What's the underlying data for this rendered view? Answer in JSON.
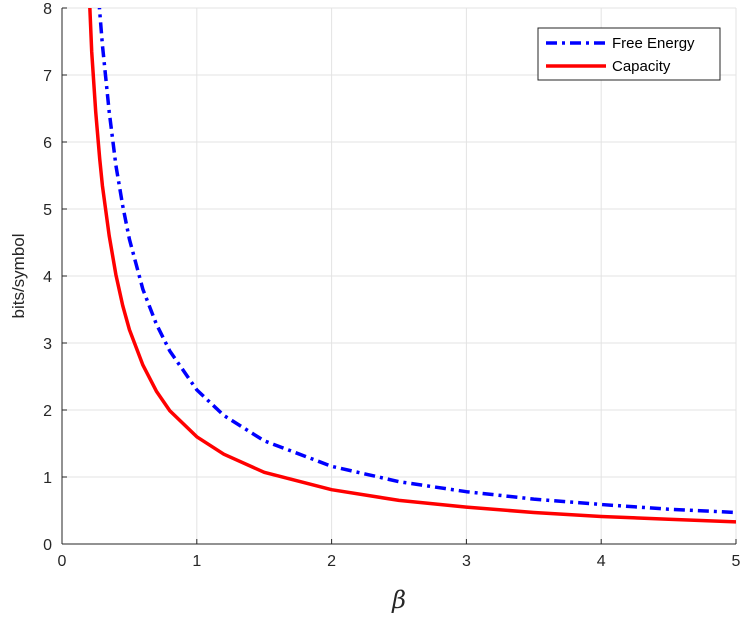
{
  "chart_data": {
    "type": "line",
    "title": "",
    "xlabel": "β",
    "ylabel": "bits/symbol",
    "xlim": [
      0,
      5
    ],
    "ylim": [
      0,
      8
    ],
    "xticks": [
      0,
      1,
      2,
      3,
      4,
      5
    ],
    "yticks": [
      0,
      1,
      2,
      3,
      4,
      5,
      6,
      7,
      8
    ],
    "grid": true,
    "legend_position": "top-right",
    "series": [
      {
        "name": "Free Energy",
        "color": "#0000ff",
        "style": "dashdot",
        "x": [
          0.26,
          0.28,
          0.3,
          0.35,
          0.4,
          0.45,
          0.5,
          0.6,
          0.7,
          0.8,
          1.0,
          1.2,
          1.5,
          2.0,
          2.5,
          3.0,
          3.5,
          4.0,
          4.5,
          5.0
        ],
        "y": [
          8.5,
          7.95,
          7.45,
          6.45,
          5.65,
          5.05,
          4.55,
          3.8,
          3.28,
          2.88,
          2.3,
          1.92,
          1.54,
          1.16,
          0.93,
          0.78,
          0.67,
          0.59,
          0.52,
          0.47
        ]
      },
      {
        "name": "Capacity",
        "color": "#ff0000",
        "style": "solid",
        "x": [
          0.2,
          0.22,
          0.25,
          0.28,
          0.3,
          0.35,
          0.4,
          0.45,
          0.5,
          0.6,
          0.7,
          0.8,
          1.0,
          1.2,
          1.5,
          2.0,
          2.5,
          3.0,
          3.5,
          4.0,
          4.5,
          5.0
        ],
        "y": [
          8.3,
          7.35,
          6.45,
          5.75,
          5.35,
          4.6,
          4.02,
          3.56,
          3.2,
          2.67,
          2.28,
          1.99,
          1.6,
          1.34,
          1.07,
          0.81,
          0.65,
          0.55,
          0.47,
          0.41,
          0.37,
          0.33
        ]
      }
    ]
  }
}
